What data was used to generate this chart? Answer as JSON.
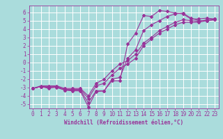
{
  "xlabel": "Windchill (Refroidissement éolien,°C)",
  "bg_color": "#aadcdc",
  "grid_color": "#ffffff",
  "line_color": "#993399",
  "series": [
    [
      0,
      1,
      2,
      3,
      4,
      5,
      6,
      7,
      8,
      9,
      10,
      11,
      12,
      13,
      14,
      15,
      16,
      17,
      18,
      19,
      20,
      21,
      22,
      23
    ],
    [
      -3.1,
      -2.9,
      -3.1,
      -2.9,
      -3.3,
      -3.4,
      -3.4,
      -5.3,
      -3.5,
      -3.4,
      -2.2,
      -2.2,
      2.2,
      3.5,
      5.6,
      5.5,
      6.2,
      6.1,
      5.9,
      5.8,
      5.2,
      5.2,
      5.3,
      5.2
    ],
    [
      -3.1,
      -2.9,
      -3.0,
      -3.0,
      -3.3,
      -3.3,
      -3.3,
      -4.8,
      -3.4,
      -3.4,
      -2.0,
      -1.8,
      0.5,
      1.5,
      3.8,
      4.5,
      5.0,
      5.5,
      5.8,
      5.9,
      5.3,
      5.0,
      5.0,
      5.1
    ],
    [
      -3.1,
      -2.9,
      -2.9,
      -2.9,
      -3.2,
      -3.2,
      -3.2,
      -4.3,
      -2.8,
      -2.5,
      -1.5,
      -0.7,
      -0.2,
      0.5,
      2.0,
      2.8,
      3.5,
      4.0,
      4.5,
      4.8,
      4.8,
      4.8,
      5.0,
      5.1
    ],
    [
      -3.1,
      -2.8,
      -2.8,
      -2.8,
      -3.1,
      -3.1,
      -3.1,
      -4.0,
      -2.5,
      -2.0,
      -1.0,
      -0.2,
      0.2,
      1.0,
      2.3,
      3.0,
      3.8,
      4.3,
      4.8,
      5.1,
      5.0,
      4.9,
      5.1,
      5.2
    ]
  ],
  "xlim": [
    -0.5,
    23.5
  ],
  "ylim": [
    -5.5,
    6.8
  ],
  "yticks": [
    -5,
    -4,
    -3,
    -2,
    -1,
    0,
    1,
    2,
    3,
    4,
    5,
    6
  ],
  "xticks": [
    0,
    1,
    2,
    3,
    4,
    5,
    6,
    7,
    8,
    9,
    10,
    11,
    12,
    13,
    14,
    15,
    16,
    17,
    18,
    19,
    20,
    21,
    22,
    23
  ],
  "tick_fontsize": 5.5,
  "xlabel_fontsize": 5.5
}
